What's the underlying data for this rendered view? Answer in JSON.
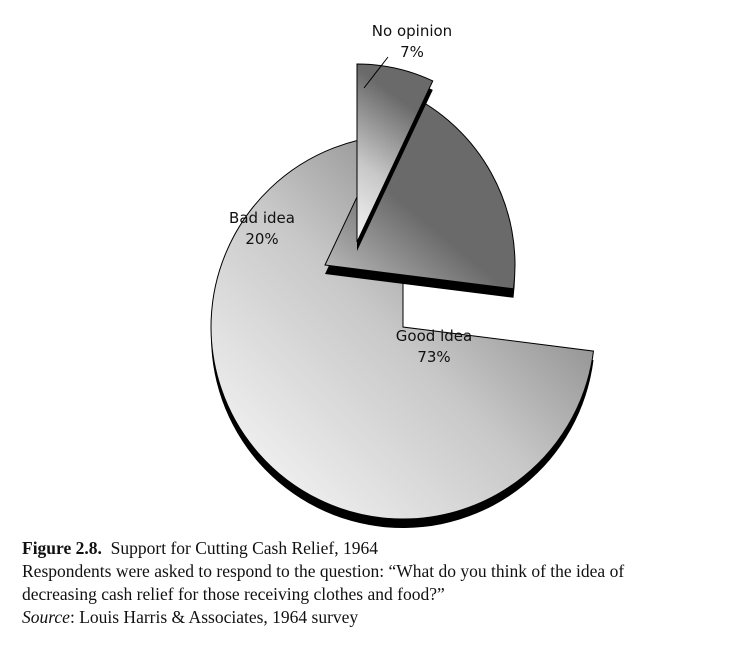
{
  "chart_data": {
    "type": "pie",
    "exploded": true,
    "slices": [
      {
        "label": "Good idea",
        "value": 73,
        "value_label": "73%"
      },
      {
        "label": "Bad idea",
        "value": 20,
        "value_label": "20%"
      },
      {
        "label": "No opinion",
        "value": 7,
        "value_label": "7%"
      }
    ],
    "colors": {
      "light": "#f2f2f2",
      "dark": "#6a6a6a",
      "shadow": "#000000",
      "stroke": "#000000"
    }
  },
  "caption": {
    "figure_number": "Figure 2.8.",
    "title": "Support for Cutting Cash Relief, 1964",
    "description_line1": "Respondents were asked to respond to the question:  “What do you think of the idea of",
    "description_line2": "decreasing cash relief for those receiving clothes and food?”",
    "source_label": "Source",
    "source_text": ": Louis Harris & Associates, 1964 survey"
  }
}
